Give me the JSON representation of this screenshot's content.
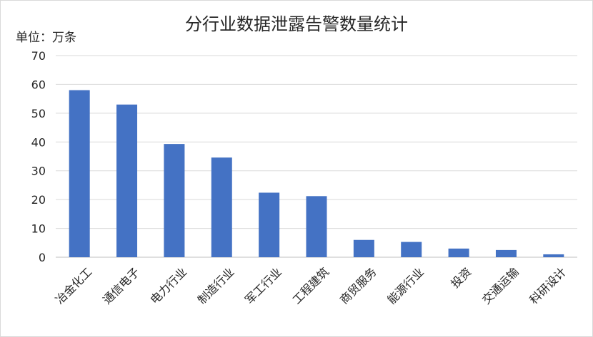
{
  "chart_data": {
    "type": "bar",
    "title": "分行业数据泄露告警数量统计",
    "unit_label": "单位：万条",
    "categories": [
      "冶金化工",
      "通信电子",
      "电力行业",
      "制造行业",
      "军工行业",
      "工程建筑",
      "商贸服务",
      "能源行业",
      "投资",
      "交通运输",
      "科研设计"
    ],
    "values": [
      58,
      53,
      39.3,
      34.6,
      22.4,
      21.2,
      6,
      5.3,
      3,
      2.5,
      1
    ],
    "ylim": [
      0,
      70
    ],
    "yticks": [
      0,
      10,
      20,
      30,
      40,
      50,
      60,
      70
    ],
    "grid": true,
    "legend": "none",
    "bar_color": "#4472c4"
  }
}
